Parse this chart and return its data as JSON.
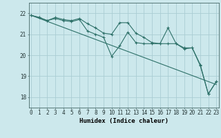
{
  "bg_color": "#cce8ec",
  "grid_color": "#aacdd4",
  "line_color": "#2d7068",
  "xlabel": "Humidex (Indice chaleur)",
  "xlabel_fontsize": 6.5,
  "tick_fontsize": 5.5,
  "ytick_labels": [
    18,
    19,
    20,
    21,
    22
  ],
  "xtick_labels": [
    0,
    1,
    2,
    3,
    4,
    5,
    6,
    7,
    8,
    9,
    10,
    11,
    12,
    13,
    14,
    15,
    16,
    17,
    18,
    19,
    20,
    21,
    22,
    23
  ],
  "xlim": [
    -0.3,
    23.3
  ],
  "ylim": [
    17.5,
    22.5
  ],
  "series1": [
    21.9,
    21.8,
    21.65,
    21.8,
    21.7,
    21.65,
    21.75,
    21.5,
    21.3,
    21.05,
    21.0,
    21.55,
    21.55,
    21.05,
    20.85,
    20.6,
    20.55,
    21.3,
    20.55,
    20.3,
    20.35,
    19.5,
    18.15,
    18.75
  ],
  "series2": [
    21.9,
    21.8,
    21.65,
    21.75,
    21.65,
    21.6,
    21.7,
    21.15,
    21.0,
    20.85,
    19.95,
    20.45,
    21.1,
    20.6,
    20.55,
    20.55,
    20.55,
    20.55,
    20.55,
    20.35,
    20.35,
    19.55,
    18.15,
    18.75
  ],
  "trend_x": [
    0,
    23
  ],
  "trend_y": [
    21.9,
    18.6
  ]
}
